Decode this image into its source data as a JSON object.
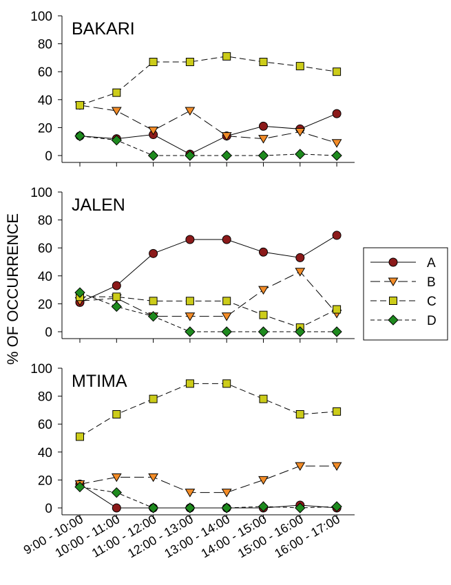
{
  "figure": {
    "ylabel": "% OF OCCURRENCE",
    "xlabels": [
      "9:00 - 10:00",
      "10:00 - 11:00",
      "11:00 - 12:00",
      "12:00 - 13:00",
      "13:00 - 14:00",
      "14:00 - 15:00",
      "15:00 - 16:00",
      "16:00 - 17:00"
    ]
  },
  "legend": {
    "items": [
      {
        "label": "A",
        "marker": "circle",
        "color": "#8b1a1a",
        "dash": "solid"
      },
      {
        "label": "B",
        "marker": "triangle-down",
        "color": "#f28c28",
        "dash": "long"
      },
      {
        "label": "C",
        "marker": "square",
        "color": "#cccc1a",
        "dash": "medium"
      },
      {
        "label": "D",
        "marker": "diamond",
        "color": "#1e8a1e",
        "dash": "short"
      }
    ]
  },
  "chart_data": [
    {
      "type": "line",
      "title": "BAKARI",
      "ylim": [
        0,
        100
      ],
      "yticks": [
        0,
        20,
        40,
        60,
        80,
        100
      ],
      "x": [
        "9:00 - 10:00",
        "10:00 - 11:00",
        "11:00 - 12:00",
        "12:00 - 13:00",
        "13:00 - 14:00",
        "14:00 - 15:00",
        "15:00 - 16:00",
        "16:00 - 17:00"
      ],
      "series": [
        {
          "name": "A",
          "values": [
            14,
            12,
            15,
            1,
            14,
            21,
            19,
            30
          ]
        },
        {
          "name": "B",
          "values": [
            36,
            32,
            18,
            32,
            14,
            12,
            17,
            9
          ]
        },
        {
          "name": "C",
          "values": [
            36,
            45,
            67,
            67,
            71,
            67,
            64,
            60
          ]
        },
        {
          "name": "D",
          "values": [
            14,
            11,
            0,
            0,
            0,
            0,
            1,
            0
          ]
        }
      ]
    },
    {
      "type": "line",
      "title": "JALEN",
      "ylim": [
        0,
        100
      ],
      "yticks": [
        0,
        20,
        40,
        60,
        80,
        100
      ],
      "x": [
        "9:00 - 10:00",
        "10:00 - 11:00",
        "11:00 - 12:00",
        "12:00 - 13:00",
        "13:00 - 14:00",
        "14:00 - 15:00",
        "15:00 - 16:00",
        "16:00 - 17:00"
      ],
      "series": [
        {
          "name": "A",
          "values": [
            21,
            33,
            56,
            66,
            66,
            57,
            53,
            69
          ]
        },
        {
          "name": "B",
          "values": [
            22,
            24,
            11,
            11,
            11,
            30,
            43,
            13
          ]
        },
        {
          "name": "C",
          "values": [
            25,
            25,
            22,
            22,
            22,
            12,
            3,
            16
          ]
        },
        {
          "name": "D",
          "values": [
            28,
            18,
            11,
            0,
            0,
            0,
            0,
            0
          ]
        }
      ]
    },
    {
      "type": "line",
      "title": "MTIMA",
      "ylim": [
        0,
        100
      ],
      "yticks": [
        0,
        20,
        40,
        60,
        80,
        100
      ],
      "x": [
        "9:00 - 10:00",
        "10:00 - 11:00",
        "11:00 - 12:00",
        "12:00 - 13:00",
        "13:00 - 14:00",
        "14:00 - 15:00",
        "15:00 - 16:00",
        "16:00 - 17:00"
      ],
      "series": [
        {
          "name": "A",
          "values": [
            17,
            0,
            0,
            0,
            0,
            0,
            2,
            0
          ]
        },
        {
          "name": "B",
          "values": [
            17,
            22,
            22,
            11,
            11,
            20,
            30,
            30
          ]
        },
        {
          "name": "C",
          "values": [
            51,
            67,
            78,
            89,
            89,
            78,
            67,
            69
          ]
        },
        {
          "name": "D",
          "values": [
            15,
            11,
            0,
            0,
            0,
            1,
            0,
            1
          ]
        }
      ]
    }
  ]
}
